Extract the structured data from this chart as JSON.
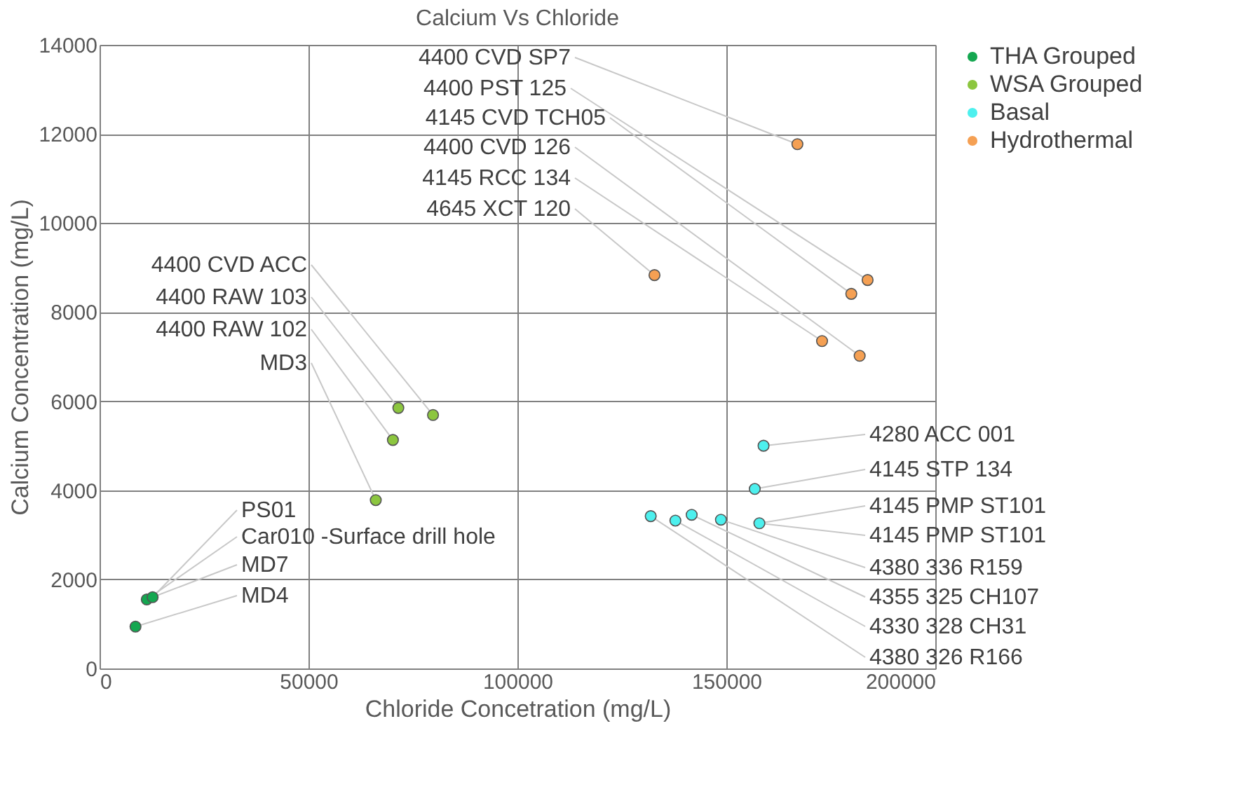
{
  "chart_data": {
    "type": "scatter",
    "title": "Calcium Vs Chloride",
    "xlabel": "Chloride Concetration (mg/L)",
    "ylabel": "Calcium Concentration (mg/L)",
    "xlim": [
      0,
      200000
    ],
    "xticks": [
      0,
      50000,
      100000,
      150000,
      200000
    ],
    "ylim": [
      0,
      14000
    ],
    "yticks": [
      0,
      2000,
      4000,
      6000,
      8000,
      10000,
      12000,
      14000
    ],
    "grid": true,
    "legend": "right",
    "marker": "circle",
    "series": [
      {
        "name": "THA Grouped",
        "color": "#14a750",
        "x": [
          8600,
          11300,
          12700
        ],
        "values": [
          940,
          1550,
          1600
        ]
      },
      {
        "name": "WSA Grouped",
        "color": "#8cc63f",
        "x": [
          66100,
          70200,
          71500,
          79800
        ],
        "values": [
          3780,
          5130,
          5850,
          5690
        ]
      },
      {
        "name": "Basal",
        "color": "#4df0ee",
        "x": [
          158900,
          156800,
          157900,
          148700,
          141700,
          137800,
          131900
        ],
        "values": [
          5000,
          4030,
          3260,
          3340,
          3450,
          3320,
          3420
        ]
      },
      {
        "name": "Hydrothermal",
        "color": "#f5a053",
        "x": [
          132800,
          167000,
          183800,
          179900,
          172900,
          181900
        ],
        "values": [
          8830,
          11770,
          8720,
          8410,
          7350,
          7020
        ]
      }
    ],
    "annotations": [
      {
        "text": "4400 CVD SP7",
        "x": 167000,
        "y": 11770
      },
      {
        "text": "4400 PST 125",
        "x": 183800,
        "y": 8720
      },
      {
        "text": "4145 CVD TCH05",
        "x": 179900,
        "y": 8410
      },
      {
        "text": "4400 CVD 126",
        "x": 181900,
        "y": 7020
      },
      {
        "text": "4145 RCC 134",
        "x": 172900,
        "y": 7350
      },
      {
        "text": "4645 XCT 120",
        "x": 132800,
        "y": 8830
      },
      {
        "text": "4400 CVD ACC",
        "x": 79800,
        "y": 5690
      },
      {
        "text": "4400 RAW 103",
        "x": 71500,
        "y": 5850
      },
      {
        "text": "4400 RAW 102",
        "x": 70200,
        "y": 5130
      },
      {
        "text": "MD3",
        "x": 66100,
        "y": 3780
      },
      {
        "text": "PS01",
        "x": 12700,
        "y": 1600
      },
      {
        "text": "Car010 -Surface drill hole",
        "x": 11300,
        "y": 1550
      },
      {
        "text": "MD7",
        "x": 12700,
        "y": 1600
      },
      {
        "text": "MD4",
        "x": 8600,
        "y": 940
      },
      {
        "text": "4280 ACC 001",
        "x": 158900,
        "y": 5000
      },
      {
        "text": "4145 STP 134",
        "x": 156800,
        "y": 4030
      },
      {
        "text": "4145 PMP ST101",
        "x": 157900,
        "y": 3260
      },
      {
        "text": "4145 PMP ST101",
        "x": 157900,
        "y": 3260
      },
      {
        "text": "4380 336 R159",
        "x": 148700,
        "y": 3340
      },
      {
        "text": "4355 325 CH107",
        "x": 141700,
        "y": 3450
      },
      {
        "text": "4330 328 CH31",
        "x": 137800,
        "y": 3320
      },
      {
        "text": "4380 326 R166",
        "x": 131900,
        "y": 3420
      }
    ]
  }
}
